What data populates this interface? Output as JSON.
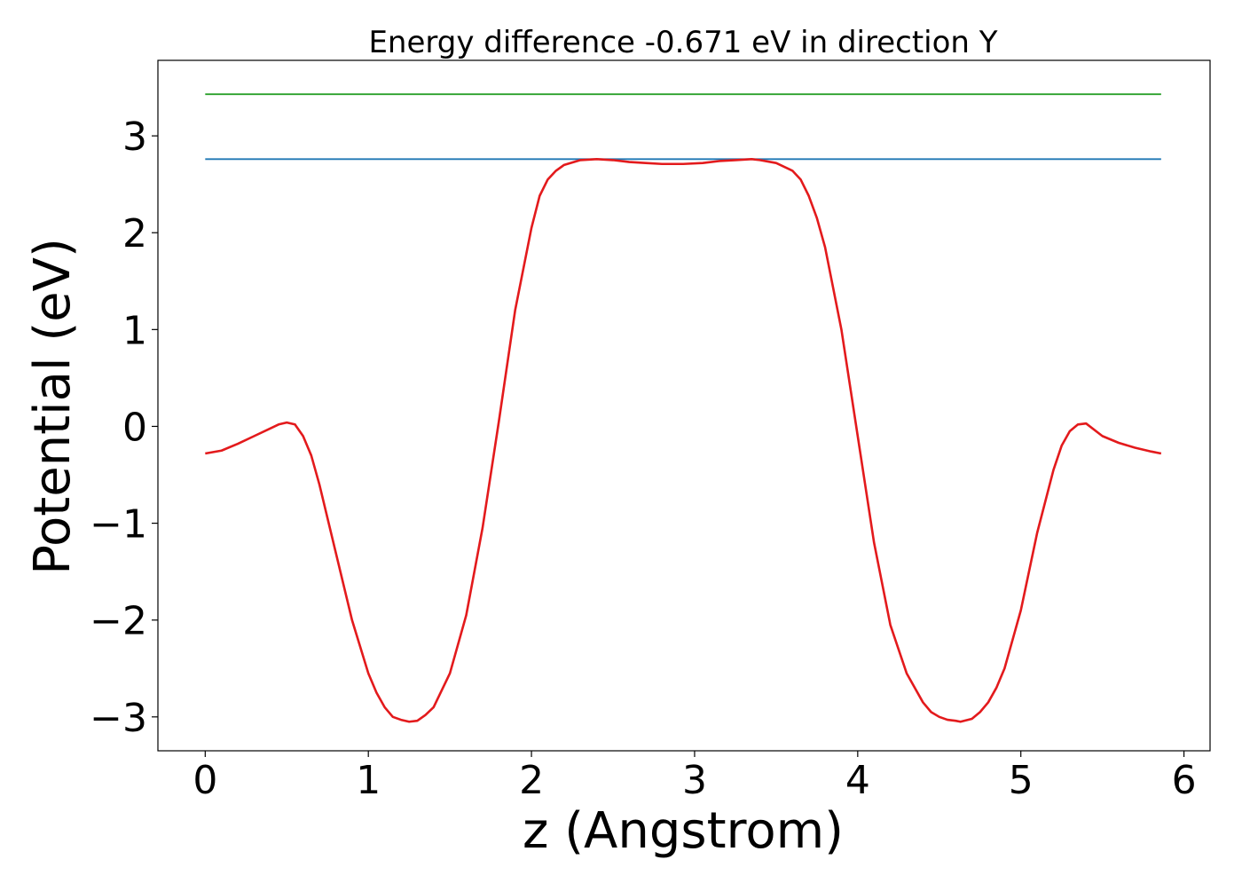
{
  "chart_data": {
    "type": "line",
    "title": "Energy difference -0.671 eV in direction Y",
    "xlabel": "z (Angstrom)",
    "ylabel": "Potential (eV)",
    "xlim": [
      -0.29,
      6.16
    ],
    "ylim": [
      -3.35,
      3.78
    ],
    "xticks": [
      0,
      1,
      2,
      3,
      4,
      5,
      6
    ],
    "xtick_labels": [
      "0",
      "1",
      "2",
      "3",
      "4",
      "5",
      "6"
    ],
    "yticks": [
      -3,
      -2,
      -1,
      0,
      1,
      2,
      3
    ],
    "ytick_labels": [
      "−3",
      "−2",
      "−1",
      "0",
      "1",
      "2",
      "3"
    ],
    "grid": false,
    "legend": "none",
    "series": [
      {
        "color": "#2ca02c",
        "style": "horizontal",
        "x": [
          0,
          5.86
        ],
        "y": [
          3.43,
          3.43
        ]
      },
      {
        "color": "#1f77b4",
        "style": "horizontal",
        "x": [
          0,
          5.86
        ],
        "y": [
          2.76,
          2.76
        ]
      },
      {
        "color": "#e31a1c",
        "style": "curve",
        "x": [
          0.0,
          0.1,
          0.2,
          0.3,
          0.4,
          0.45,
          0.5,
          0.55,
          0.6,
          0.65,
          0.7,
          0.8,
          0.9,
          1.0,
          1.05,
          1.1,
          1.15,
          1.2,
          1.25,
          1.3,
          1.35,
          1.4,
          1.5,
          1.6,
          1.7,
          1.8,
          1.9,
          2.0,
          2.05,
          2.1,
          2.15,
          2.2,
          2.3,
          2.4,
          2.5,
          2.6,
          2.7,
          2.8,
          2.93,
          3.05,
          3.15,
          3.25,
          3.35,
          3.4,
          3.5,
          3.6,
          3.65,
          3.7,
          3.75,
          3.8,
          3.9,
          4.0,
          4.1,
          4.2,
          4.3,
          4.4,
          4.45,
          4.5,
          4.55,
          4.6,
          4.63,
          4.7,
          4.75,
          4.8,
          4.85,
          4.9,
          5.0,
          5.1,
          5.2,
          5.25,
          5.3,
          5.35,
          5.4,
          5.5,
          5.6,
          5.7,
          5.8,
          5.86
        ],
        "y": [
          -0.28,
          -0.25,
          -0.18,
          -0.1,
          -0.02,
          0.02,
          0.04,
          0.02,
          -0.1,
          -0.3,
          -0.6,
          -1.3,
          -2.0,
          -2.55,
          -2.75,
          -2.9,
          -3.0,
          -3.03,
          -3.05,
          -3.04,
          -2.98,
          -2.9,
          -2.55,
          -1.95,
          -1.05,
          0.05,
          1.2,
          2.05,
          2.38,
          2.55,
          2.64,
          2.7,
          2.75,
          2.76,
          2.75,
          2.73,
          2.72,
          2.71,
          2.71,
          2.72,
          2.74,
          2.75,
          2.76,
          2.75,
          2.72,
          2.64,
          2.55,
          2.38,
          2.15,
          1.85,
          1.0,
          -0.1,
          -1.2,
          -2.05,
          -2.55,
          -2.85,
          -2.95,
          -3.0,
          -3.03,
          -3.04,
          -3.05,
          -3.02,
          -2.95,
          -2.85,
          -2.7,
          -2.5,
          -1.9,
          -1.1,
          -0.45,
          -0.2,
          -0.05,
          0.02,
          0.03,
          -0.1,
          -0.17,
          -0.22,
          -0.26,
          -0.28
        ]
      }
    ]
  }
}
